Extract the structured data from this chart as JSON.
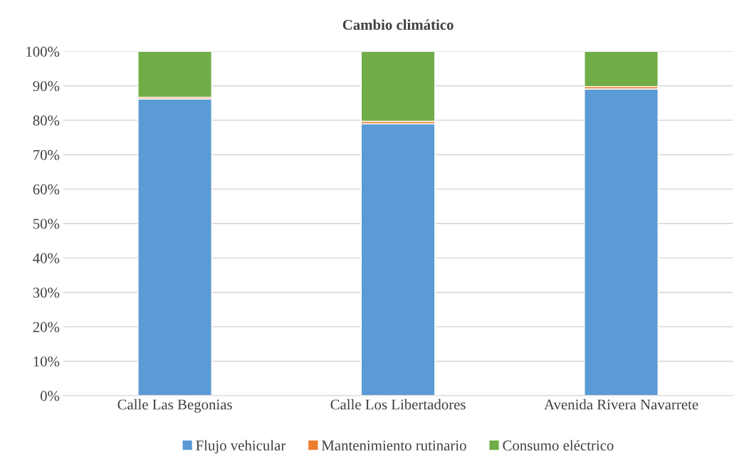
{
  "chart_data": {
    "type": "bar",
    "title": "Cambio climático",
    "stacked": true,
    "categories": [
      "Calle Las Begonias",
      "Calle Los Libertadores",
      "Avenida Rivera Navarrete"
    ],
    "series": [
      {
        "name": "Flujo vehicular",
        "color": "#5b9bd5",
        "values": [
          86.2,
          79.0,
          89.1
        ]
      },
      {
        "name": "Mantenimiento rutinario",
        "color": "#ed7d31",
        "values": [
          0.5,
          0.7,
          0.7
        ]
      },
      {
        "name": "Consumo eléctrico",
        "color": "#70ad47",
        "values": [
          13.3,
          20.3,
          10.2
        ]
      }
    ],
    "ylim": [
      0,
      100
    ],
    "yticks": [
      {
        "value": 0,
        "label": "0%"
      },
      {
        "value": 10,
        "label": "10%"
      },
      {
        "value": 20,
        "label": "20%"
      },
      {
        "value": 30,
        "label": "30%"
      },
      {
        "value": 40,
        "label": "40%"
      },
      {
        "value": 50,
        "label": "50%"
      },
      {
        "value": 60,
        "label": "60%"
      },
      {
        "value": 70,
        "label": "70%"
      },
      {
        "value": 80,
        "label": "80%"
      },
      {
        "value": 90,
        "label": "90%"
      },
      {
        "value": 100,
        "label": "100%"
      }
    ],
    "grid": "y",
    "legend": "bottom"
  }
}
